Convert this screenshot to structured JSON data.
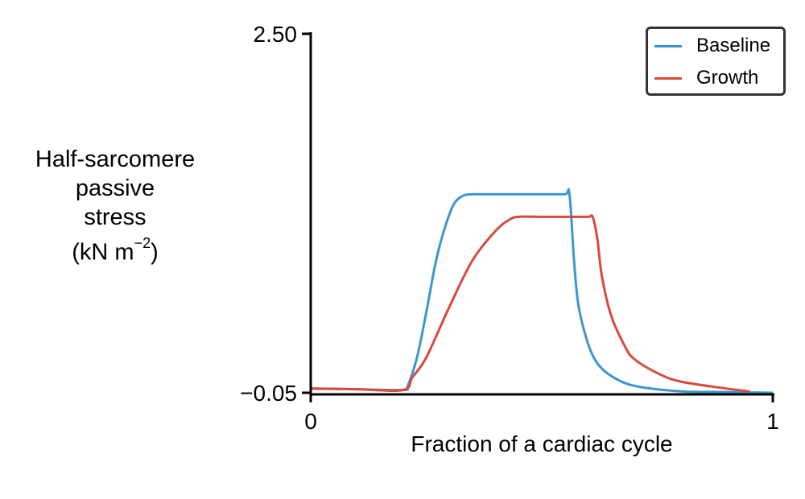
{
  "chart_data": {
    "type": "line",
    "title": "",
    "xlabel": "Fraction of a cardiac cycle",
    "ylabel_lines": [
      "Half-sarcomere",
      "passive",
      "stress"
    ],
    "yunit": {
      "base": "(kN m",
      "exponent": "−2",
      "close": ")"
    },
    "xlim": [
      0,
      1
    ],
    "ylim": [
      -0.05,
      2.5
    ],
    "xticks": [
      {
        "value": 0,
        "label": "0"
      },
      {
        "value": 1,
        "label": "1"
      }
    ],
    "yticks": [
      {
        "value": -0.05,
        "label": "−0.05"
      },
      {
        "value": 2.5,
        "label": "2.50"
      }
    ],
    "grid": false,
    "legend_position": "top-right",
    "series": [
      {
        "name": "Baseline",
        "color": "#3a96d0",
        "x": [
          0,
          0.1,
          0.2,
          0.21,
          0.23,
          0.25,
          0.27,
          0.29,
          0.31,
          0.33,
          0.35,
          0.37,
          0.4,
          0.45,
          0.5,
          0.55,
          0.56,
          0.57,
          0.58,
          0.6,
          0.62,
          0.65,
          0.7,
          0.8,
          0.9,
          1.0
        ],
        "y": [
          -0.02,
          -0.025,
          -0.03,
          0.0,
          0.2,
          0.52,
          0.87,
          1.12,
          1.29,
          1.35,
          1.36,
          1.36,
          1.36,
          1.36,
          1.36,
          1.36,
          1.36,
          0.88,
          0.56,
          0.3,
          0.16,
          0.07,
          0.0,
          -0.04,
          -0.045,
          -0.05
        ]
      },
      {
        "name": "Growth",
        "color": "#d9493c",
        "x": [
          0,
          0.1,
          0.2,
          0.22,
          0.25,
          0.3,
          0.35,
          0.4,
          0.43,
          0.45,
          0.5,
          0.55,
          0.6,
          0.61,
          0.62,
          0.63,
          0.65,
          0.68,
          0.7,
          0.75,
          0.8,
          0.9,
          0.95
        ],
        "y": [
          -0.02,
          -0.025,
          -0.03,
          0.06,
          0.2,
          0.56,
          0.89,
          1.1,
          1.18,
          1.2,
          1.2,
          1.2,
          1.2,
          1.2,
          1.05,
          0.78,
          0.5,
          0.28,
          0.19,
          0.09,
          0.03,
          -0.02,
          -0.04
        ]
      }
    ]
  }
}
